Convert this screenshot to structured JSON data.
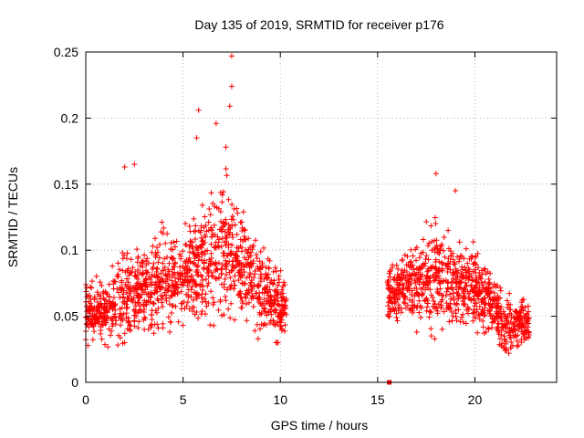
{
  "chart_data": {
    "type": "scatter",
    "title": "Day 135 of 2019, SRMTID for receiver p176",
    "xlabel": "GPS time / hours",
    "ylabel": "SRMTID / TECUs",
    "xlim": [
      0,
      24.2
    ],
    "ylim": [
      0,
      0.25
    ],
    "grid": true,
    "marker": "+",
    "color": "#ff0000",
    "x_ticks": [
      0,
      5,
      10,
      15,
      20
    ],
    "x_tick_labels": [
      "0",
      "5",
      "10",
      "15",
      "20"
    ],
    "y_ticks": [
      0,
      0.05,
      0.1,
      0.15,
      0.2,
      0.25
    ],
    "y_tick_labels": [
      "0",
      "0.05",
      "0.1",
      "0.15",
      "0.2",
      "0.25"
    ],
    "series": [
      {
        "name": "SRMTID",
        "segments": [
          {
            "x_start": 0.0,
            "x_end": 10.3
          },
          {
            "x_start": 15.5,
            "x_end": 22.8
          }
        ],
        "envelope": [
          {
            "x": 0.0,
            "y_low": 0.02,
            "y_mid": 0.05,
            "y_high": 0.085
          },
          {
            "x": 1.0,
            "y_low": 0.025,
            "y_mid": 0.055,
            "y_high": 0.09
          },
          {
            "x": 2.0,
            "y_low": 0.03,
            "y_mid": 0.065,
            "y_high": 0.13
          },
          {
            "x": 3.0,
            "y_low": 0.03,
            "y_mid": 0.07,
            "y_high": 0.12
          },
          {
            "x": 4.0,
            "y_low": 0.03,
            "y_mid": 0.075,
            "y_high": 0.135
          },
          {
            "x": 5.0,
            "y_low": 0.035,
            "y_mid": 0.08,
            "y_high": 0.125
          },
          {
            "x": 6.0,
            "y_low": 0.04,
            "y_mid": 0.09,
            "y_high": 0.185
          },
          {
            "x": 7.0,
            "y_low": 0.045,
            "y_mid": 0.1,
            "y_high": 0.2
          },
          {
            "x": 8.0,
            "y_low": 0.04,
            "y_mid": 0.09,
            "y_high": 0.14
          },
          {
            "x": 9.0,
            "y_low": 0.03,
            "y_mid": 0.07,
            "y_high": 0.125
          },
          {
            "x": 10.3,
            "y_low": 0.025,
            "y_mid": 0.055,
            "y_high": 0.08
          },
          {
            "x": 15.5,
            "y_low": 0.04,
            "y_mid": 0.065,
            "y_high": 0.09
          },
          {
            "x": 17.0,
            "y_low": 0.035,
            "y_mid": 0.075,
            "y_high": 0.12
          },
          {
            "x": 18.0,
            "y_low": 0.03,
            "y_mid": 0.08,
            "y_high": 0.15
          },
          {
            "x": 19.0,
            "y_low": 0.035,
            "y_mid": 0.075,
            "y_high": 0.13
          },
          {
            "x": 20.0,
            "y_low": 0.03,
            "y_mid": 0.07,
            "y_high": 0.11
          },
          {
            "x": 21.0,
            "y_low": 0.03,
            "y_mid": 0.06,
            "y_high": 0.095
          },
          {
            "x": 21.5,
            "y_low": 0.015,
            "y_mid": 0.04,
            "y_high": 0.08
          },
          {
            "x": 22.8,
            "y_low": 0.02,
            "y_mid": 0.045,
            "y_high": 0.07
          }
        ],
        "highlighted_points": [
          {
            "x": 7.5,
            "y": 0.247
          },
          {
            "x": 7.5,
            "y": 0.224
          },
          {
            "x": 5.8,
            "y": 0.206
          },
          {
            "x": 6.7,
            "y": 0.196
          },
          {
            "x": 7.4,
            "y": 0.209
          },
          {
            "x": 2.5,
            "y": 0.165
          },
          {
            "x": 2.0,
            "y": 0.163
          },
          {
            "x": 18.0,
            "y": 0.158
          },
          {
            "x": 19.0,
            "y": 0.145
          },
          {
            "x": 5.7,
            "y": 0.185
          },
          {
            "x": 7.2,
            "y": 0.178
          }
        ],
        "square_marker": {
          "x": 15.6,
          "y": 0.0
        }
      }
    ]
  }
}
